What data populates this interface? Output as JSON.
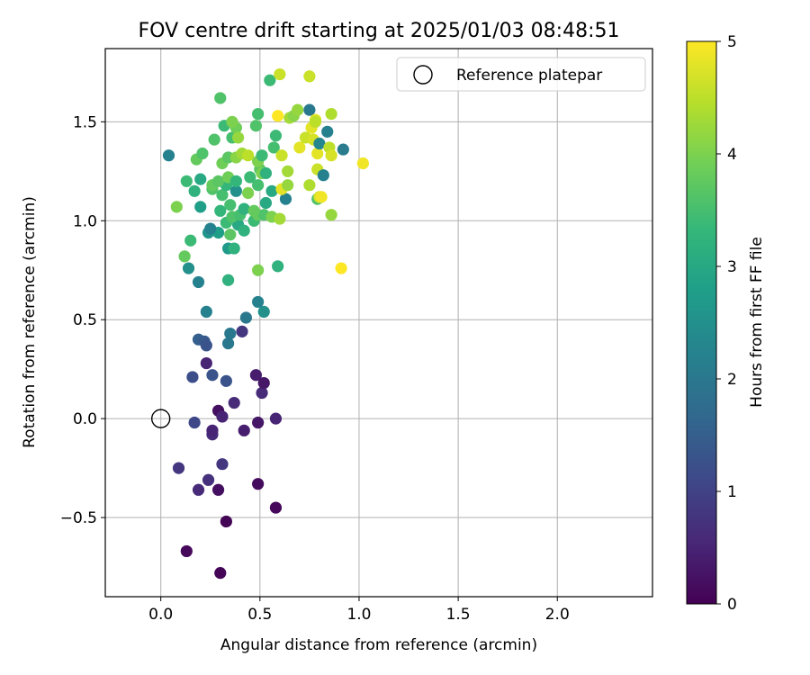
{
  "chart_data": {
    "type": "scatter",
    "title": "FOV centre drift starting at 2025/01/03 08:48:51",
    "xlabel": "Angular distance from reference (arcmin)",
    "ylabel": "Rotation from reference (arcmin)",
    "xlim": [
      -0.28,
      2.48
    ],
    "ylim": [
      -0.9,
      1.87
    ],
    "xticks": [
      0.0,
      0.5,
      1.0,
      1.5,
      2.0
    ],
    "xtick_labels": [
      "0.0",
      "0.5",
      "1.0",
      "1.5",
      "2.0"
    ],
    "yticks": [
      -0.5,
      0.0,
      0.5,
      1.0,
      1.5
    ],
    "ytick_labels": [
      "−0.5",
      "0.0",
      "0.5",
      "1.0",
      "1.5"
    ],
    "grid": true,
    "legend": {
      "placement": "top-right",
      "entries": [
        {
          "label": "Reference platepar",
          "marker": "open-circle"
        }
      ]
    },
    "reference_point": {
      "x": 0.0,
      "y": 0.0
    },
    "colorbar": {
      "label": "Hours from first FF file",
      "range": [
        0,
        5
      ],
      "ticks": [
        0,
        1,
        2,
        3,
        4,
        5
      ],
      "tick_labels": [
        "0",
        "1",
        "2",
        "3",
        "4",
        "5"
      ],
      "colormap": "viridis",
      "stops": [
        "#440154",
        "#482878",
        "#3e4989",
        "#31688e",
        "#26828e",
        "#1f9e89",
        "#35b779",
        "#6ece58",
        "#b5de2b",
        "#fde725"
      ]
    },
    "series": [
      {
        "points": [
          [
            0.3,
            -0.78,
            0.05
          ],
          [
            0.13,
            -0.67,
            0.1
          ],
          [
            0.33,
            -0.52,
            0.05
          ],
          [
            0.58,
            -0.45,
            0.1
          ],
          [
            0.29,
            -0.36,
            0.2
          ],
          [
            0.49,
            -0.33,
            0.15
          ],
          [
            0.24,
            -0.31,
            0.7
          ],
          [
            0.19,
            -0.36,
            0.6
          ],
          [
            0.09,
            -0.25,
            0.8
          ],
          [
            0.31,
            -0.23,
            0.8
          ],
          [
            0.26,
            -0.08,
            0.6
          ],
          [
            0.26,
            -0.06,
            0.5
          ],
          [
            0.42,
            -0.06,
            0.4
          ],
          [
            0.17,
            -0.02,
            1.1
          ],
          [
            0.49,
            -0.02,
            0.3
          ],
          [
            0.58,
            0.0,
            0.5
          ],
          [
            0.29,
            0.04,
            0.2
          ],
          [
            0.31,
            0.01,
            0.5
          ],
          [
            0.37,
            0.08,
            0.6
          ],
          [
            0.51,
            0.13,
            0.6
          ],
          [
            0.52,
            0.18,
            0.3
          ],
          [
            0.48,
            0.22,
            0.4
          ],
          [
            0.16,
            0.21,
            1.2
          ],
          [
            0.26,
            0.22,
            1.3
          ],
          [
            0.33,
            0.19,
            1.3
          ],
          [
            0.23,
            0.28,
            0.5
          ],
          [
            0.19,
            0.4,
            1.5
          ],
          [
            0.22,
            0.39,
            1.4
          ],
          [
            0.23,
            0.37,
            1.3
          ],
          [
            0.41,
            0.44,
            0.8
          ],
          [
            0.35,
            0.43,
            2.0
          ],
          [
            0.34,
            0.38,
            2.0
          ],
          [
            0.43,
            0.51,
            2.0
          ],
          [
            0.23,
            0.54,
            2.2
          ],
          [
            0.52,
            0.54,
            2.5
          ],
          [
            0.49,
            0.59,
            2.2
          ],
          [
            0.19,
            0.69,
            2.2
          ],
          [
            0.14,
            0.76,
            2.5
          ],
          [
            0.34,
            0.7,
            3.2
          ],
          [
            0.59,
            0.77,
            3.2
          ],
          [
            0.49,
            0.75,
            4.0
          ],
          [
            0.12,
            0.82,
            3.8
          ],
          [
            0.34,
            0.86,
            2.7
          ],
          [
            0.37,
            0.86,
            3.2
          ],
          [
            0.35,
            0.93,
            3.7
          ],
          [
            0.15,
            0.9,
            3.4
          ],
          [
            0.24,
            0.94,
            2.6
          ],
          [
            0.29,
            0.94,
            2.8
          ],
          [
            0.25,
            0.96,
            2.2
          ],
          [
            0.33,
            0.99,
            3.4
          ],
          [
            0.39,
            0.98,
            3.0
          ],
          [
            0.42,
            0.95,
            3.2
          ],
          [
            0.47,
            1.0,
            3.4
          ],
          [
            0.36,
            1.02,
            3.6
          ],
          [
            0.4,
            1.03,
            3.5
          ],
          [
            0.49,
            1.03,
            3.8
          ],
          [
            0.52,
            1.03,
            3.6
          ],
          [
            0.56,
            1.02,
            4.0
          ],
          [
            0.6,
            1.01,
            4.3
          ],
          [
            0.08,
            1.07,
            4.0
          ],
          [
            0.2,
            1.07,
            2.8
          ],
          [
            0.3,
            1.05,
            3.3
          ],
          [
            0.35,
            1.08,
            3.5
          ],
          [
            0.42,
            1.06,
            3.2
          ],
          [
            0.47,
            1.05,
            3.8
          ],
          [
            0.53,
            1.09,
            3.0
          ],
          [
            0.63,
            1.11,
            2.2
          ],
          [
            0.79,
            1.11,
            3.6
          ],
          [
            0.86,
            1.03,
            4.2
          ],
          [
            0.17,
            1.15,
            3.2
          ],
          [
            0.26,
            1.16,
            3.6
          ],
          [
            0.31,
            1.13,
            3.5
          ],
          [
            0.33,
            1.18,
            3.3
          ],
          [
            0.38,
            1.15,
            2.5
          ],
          [
            0.44,
            1.14,
            4.0
          ],
          [
            0.49,
            1.18,
            3.5
          ],
          [
            0.56,
            1.15,
            3.0
          ],
          [
            0.61,
            1.16,
            4.8
          ],
          [
            0.64,
            1.18,
            4.2
          ],
          [
            0.75,
            1.18,
            4.4
          ],
          [
            0.8,
            1.12,
            4.7
          ],
          [
            0.81,
            1.12,
            4.9
          ],
          [
            0.13,
            1.2,
            3.4
          ],
          [
            0.2,
            1.21,
            3.0
          ],
          [
            0.26,
            1.18,
            3.8
          ],
          [
            0.29,
            1.2,
            3.7
          ],
          [
            0.34,
            1.22,
            3.9
          ],
          [
            0.38,
            1.2,
            3.3
          ],
          [
            0.45,
            1.22,
            3.4
          ],
          [
            0.5,
            1.26,
            3.7
          ],
          [
            0.51,
            1.24,
            4.0
          ],
          [
            0.53,
            1.24,
            3.2
          ],
          [
            0.64,
            1.25,
            4.3
          ],
          [
            0.79,
            1.26,
            4.6
          ],
          [
            0.82,
            1.23,
            2.2
          ],
          [
            0.04,
            1.33,
            2.2
          ],
          [
            0.18,
            1.31,
            3.8
          ],
          [
            0.21,
            1.34,
            3.6
          ],
          [
            0.31,
            1.29,
            3.9
          ],
          [
            0.34,
            1.32,
            3.7
          ],
          [
            0.38,
            1.32,
            4.1
          ],
          [
            0.41,
            1.34,
            4.3
          ],
          [
            0.44,
            1.33,
            4.5
          ],
          [
            0.49,
            1.3,
            4.0
          ],
          [
            0.51,
            1.33,
            3.4
          ],
          [
            0.57,
            1.37,
            3.5
          ],
          [
            0.61,
            1.33,
            4.6
          ],
          [
            0.7,
            1.37,
            4.8
          ],
          [
            0.73,
            1.42,
            4.6
          ],
          [
            0.77,
            1.41,
            4.7
          ],
          [
            0.79,
            1.34,
            4.8
          ],
          [
            0.8,
            1.39,
            2.3
          ],
          [
            0.85,
            1.37,
            4.5
          ],
          [
            0.86,
            1.33,
            4.7
          ],
          [
            0.92,
            1.36,
            2.1
          ],
          [
            1.02,
            1.29,
            4.9
          ],
          [
            0.27,
            1.41,
            3.6
          ],
          [
            0.32,
            1.48,
            3.4
          ],
          [
            0.36,
            1.42,
            3.5
          ],
          [
            0.38,
            1.47,
            3.9
          ],
          [
            0.39,
            1.42,
            4.2
          ],
          [
            0.48,
            1.48,
            3.6
          ],
          [
            0.49,
            1.54,
            3.5
          ],
          [
            0.58,
            1.43,
            3.4
          ],
          [
            0.59,
            1.53,
            5.0
          ],
          [
            0.65,
            1.52,
            4.3
          ],
          [
            0.67,
            1.53,
            4.1
          ],
          [
            0.69,
            1.56,
            4.2
          ],
          [
            0.75,
            1.56,
            2.0
          ],
          [
            0.76,
            1.47,
            4.8
          ],
          [
            0.78,
            1.51,
            4.8
          ],
          [
            0.78,
            1.5,
            4.5
          ],
          [
            0.84,
            1.45,
            2.2
          ],
          [
            0.86,
            1.54,
            4.4
          ],
          [
            0.3,
            1.62,
            3.6
          ],
          [
            0.36,
            1.5,
            4.0
          ],
          [
            0.55,
            1.71,
            3.4
          ],
          [
            0.6,
            1.74,
            4.6
          ],
          [
            0.75,
            1.73,
            4.6
          ],
          [
            0.91,
            0.76,
            5.0
          ]
        ]
      }
    ]
  }
}
